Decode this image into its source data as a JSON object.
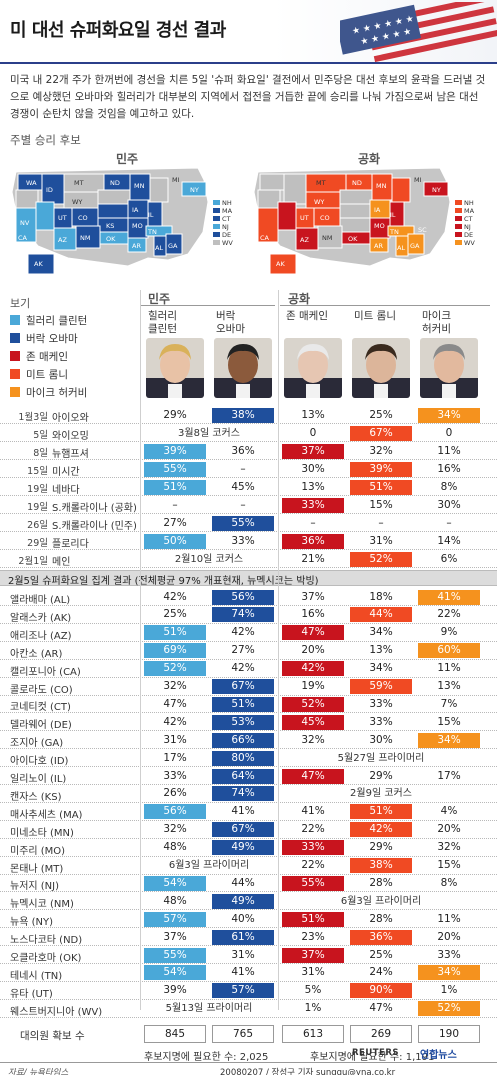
{
  "title": "미 대선 슈퍼화요일 경선 결과",
  "intro": "미국 내 22개 주가 한꺼번에 경선을 치른 5일 '슈퍼 화요일' 결전에서 민주당은 대선 후보의 윤곽을 드러낼 것으로 예상했던 오바마와 힐러리가 대부분의 지역에서 접전을 거듭한 끝에 승리를 나눠 가짐으로써 남은 대선 경쟁이 순탄치 않을 것임을 예고하고 있다.",
  "map_section_label": "주별 승리 후보",
  "maps": {
    "dem": {
      "title": "민주",
      "states": [
        "WA",
        "OR",
        "MT",
        "ND",
        "MN",
        "WI",
        "MI",
        "ID",
        "WY",
        "SD",
        "NY",
        "IA",
        "NV",
        "UT",
        "CO",
        "NE",
        "KS",
        "CA",
        "AZ",
        "NM",
        "OK",
        "MO",
        "IL",
        "TN",
        "AL",
        "GA",
        "AR",
        "TX",
        "AK",
        "HI",
        "MA",
        "NJ",
        "CT",
        "DE",
        "NH",
        "VT",
        "WV",
        "RI",
        "ME",
        "IN",
        "OH",
        "PA",
        "KY",
        "VA",
        "NC",
        "SC",
        "MS",
        "LA",
        "FL",
        "MD"
      ],
      "east_labels": [
        "NH",
        "MA",
        "CT",
        "NJ",
        "DE",
        "WV"
      ]
    },
    "rep": {
      "title": "공화",
      "east_labels": [
        "NH",
        "MA",
        "CT",
        "NJ",
        "DE",
        "WV"
      ]
    }
  },
  "colors": {
    "clinton": "#4aa8d8",
    "obama": "#1f4f9c",
    "mccain": "#c8141e",
    "romney": "#f04a23",
    "huckabee": "#f5921e",
    "uncontested": "#bfbfbf"
  },
  "legend": {
    "head": "보기",
    "items": [
      {
        "label": "힐러리 클린턴",
        "color": "#4aa8d8"
      },
      {
        "label": "버락 오바마",
        "color": "#1f4f9c"
      },
      {
        "label": "존 매케인",
        "color": "#c8141e"
      },
      {
        "label": "미트 롬니",
        "color": "#f04a23"
      },
      {
        "label": "마이크 허커비",
        "color": "#f5921e"
      }
    ]
  },
  "groups": {
    "dem": "민주",
    "rep": "공화"
  },
  "candidates": [
    {
      "name1": "힐러리",
      "name2": "클린턴"
    },
    {
      "name1": "버락",
      "name2": "오바마"
    },
    {
      "name1": "존 매케인",
      "name2": ""
    },
    {
      "name1": "미트 롬니",
      "name2": ""
    },
    {
      "name1": "마이크",
      "name2": "허커비"
    }
  ],
  "chart_data": {
    "type": "table",
    "title": "미 대선 슈퍼화요일 경선 결과",
    "columns": [
      "힐러리 클린턴",
      "버락 오바마",
      "존 매케인",
      "미트 롬니",
      "마이크 허커비"
    ],
    "early_contests": [
      {
        "date": "1월3일",
        "state": "아이오와",
        "values": [
          "29%",
          "38%",
          "13%",
          "25%",
          "34%"
        ],
        "winners": {
          "dem": 1,
          "rep": 4
        }
      },
      {
        "date": "5일",
        "state": "와이오밍",
        "dem_note": "3월8일 코커스",
        "values": [
          "",
          "",
          "0",
          "67%",
          "0"
        ],
        "winners": {
          "rep": 3
        }
      },
      {
        "date": "8일",
        "state": "뉴햄프셔",
        "values": [
          "39%",
          "36%",
          "37%",
          "32%",
          "11%"
        ],
        "winners": {
          "dem": 0,
          "rep": 2
        }
      },
      {
        "date": "15일",
        "state": "미시간",
        "values": [
          "55%",
          "–",
          "30%",
          "39%",
          "16%"
        ],
        "winners": {
          "dem": 0,
          "rep": 3
        }
      },
      {
        "date": "19일",
        "state": "네바다",
        "values": [
          "51%",
          "45%",
          "13%",
          "51%",
          "8%"
        ],
        "winners": {
          "dem": 0,
          "rep": 3
        }
      },
      {
        "date": "19일",
        "state": "S.캐롤라이나 (공화)",
        "values": [
          "–",
          "–",
          "33%",
          "15%",
          "30%"
        ],
        "winners": {
          "rep": 2
        }
      },
      {
        "date": "26일",
        "state": "S.캐롤라이나 (민주)",
        "values": [
          "27%",
          "55%",
          "–",
          "–",
          "–"
        ],
        "winners": {
          "dem": 1
        }
      },
      {
        "date": "29일",
        "state": "플로리다",
        "values": [
          "50%",
          "33%",
          "36%",
          "31%",
          "14%"
        ],
        "winners": {
          "dem": 0,
          "rep": 2
        }
      },
      {
        "date": "2월1일",
        "state": "메인",
        "dem_note": "2월10일 코커스",
        "values": [
          "",
          "",
          "21%",
          "52%",
          "6%"
        ],
        "winners": {
          "rep": 3
        }
      }
    ],
    "super_tuesday_header": "2월5일 슈퍼화요일 집계 결과 (전체평균 97% 개표현재, 뉴멕시코는 박빙)",
    "super_tuesday": [
      {
        "state": "앨라배마 (AL)",
        "values": [
          "42%",
          "56%",
          "37%",
          "18%",
          "41%"
        ],
        "winners": {
          "dem": 1,
          "rep": 4
        }
      },
      {
        "state": "알래스카 (AK)",
        "values": [
          "25%",
          "74%",
          "16%",
          "44%",
          "22%"
        ],
        "winners": {
          "dem": 1,
          "rep": 3
        }
      },
      {
        "state": "애리조나 (AZ)",
        "values": [
          "51%",
          "42%",
          "47%",
          "34%",
          "9%"
        ],
        "winners": {
          "dem": 0,
          "rep": 2
        }
      },
      {
        "state": "아칸소 (AR)",
        "values": [
          "69%",
          "27%",
          "20%",
          "13%",
          "60%"
        ],
        "winners": {
          "dem": 0,
          "rep": 4
        }
      },
      {
        "state": "캘리포니아 (CA)",
        "values": [
          "52%",
          "42%",
          "42%",
          "34%",
          "11%"
        ],
        "winners": {
          "dem": 0,
          "rep": 2
        }
      },
      {
        "state": "콜로라도 (CO)",
        "values": [
          "32%",
          "67%",
          "19%",
          "59%",
          "13%"
        ],
        "winners": {
          "dem": 1,
          "rep": 3
        }
      },
      {
        "state": "코네티컷 (CT)",
        "values": [
          "47%",
          "51%",
          "52%",
          "33%",
          "7%"
        ],
        "winners": {
          "dem": 1,
          "rep": 2
        }
      },
      {
        "state": "델라웨어 (DE)",
        "values": [
          "42%",
          "53%",
          "45%",
          "33%",
          "15%"
        ],
        "winners": {
          "dem": 1,
          "rep": 2
        }
      },
      {
        "state": "조지아 (GA)",
        "values": [
          "31%",
          "66%",
          "32%",
          "30%",
          "34%"
        ],
        "winners": {
          "dem": 1,
          "rep": 4
        }
      },
      {
        "state": "아이다호 (ID)",
        "values": [
          "17%",
          "80%",
          "",
          "",
          ""
        ],
        "rep_note": "5월27일 프라이머리",
        "winners": {
          "dem": 1
        }
      },
      {
        "state": "일리노이 (IL)",
        "values": [
          "33%",
          "64%",
          "47%",
          "29%",
          "17%"
        ],
        "winners": {
          "dem": 1,
          "rep": 2
        }
      },
      {
        "state": "캔자스 (KS)",
        "values": [
          "26%",
          "74%",
          "",
          "",
          ""
        ],
        "rep_note": "2월9일 코커스",
        "winners": {
          "dem": 1
        }
      },
      {
        "state": "매사추세츠 (MA)",
        "values": [
          "56%",
          "41%",
          "41%",
          "51%",
          "4%"
        ],
        "winners": {
          "dem": 0,
          "rep": 3
        }
      },
      {
        "state": "미네소타 (MN)",
        "values": [
          "32%",
          "67%",
          "22%",
          "42%",
          "20%"
        ],
        "winners": {
          "dem": 1,
          "rep": 3
        }
      },
      {
        "state": "미주리 (MO)",
        "values": [
          "48%",
          "49%",
          "33%",
          "29%",
          "32%"
        ],
        "winners": {
          "dem": 1,
          "rep": 2
        }
      },
      {
        "state": "몬태나 (MT)",
        "values": [
          "",
          "",
          "22%",
          "38%",
          "15%"
        ],
        "dem_note": "6월3일 프라이머리",
        "winners": {
          "rep": 3
        }
      },
      {
        "state": "뉴저지 (NJ)",
        "values": [
          "54%",
          "44%",
          "55%",
          "28%",
          "8%"
        ],
        "winners": {
          "dem": 0,
          "rep": 2
        }
      },
      {
        "state": "뉴멕시코 (NM)",
        "values": [
          "48%",
          "49%",
          "",
          "",
          ""
        ],
        "rep_note": "6월3일 프라이머리",
        "winners": {
          "dem": 1
        }
      },
      {
        "state": "뉴욕 (NY)",
        "values": [
          "57%",
          "40%",
          "51%",
          "28%",
          "11%"
        ],
        "winners": {
          "dem": 0,
          "rep": 2
        }
      },
      {
        "state": "노스다코타 (ND)",
        "values": [
          "37%",
          "61%",
          "23%",
          "36%",
          "20%"
        ],
        "winners": {
          "dem": 1,
          "rep": 3
        }
      },
      {
        "state": "오클라호마 (OK)",
        "values": [
          "55%",
          "31%",
          "37%",
          "25%",
          "33%"
        ],
        "winners": {
          "dem": 0,
          "rep": 2
        }
      },
      {
        "state": "테네시 (TN)",
        "values": [
          "54%",
          "41%",
          "31%",
          "24%",
          "34%"
        ],
        "winners": {
          "dem": 0,
          "rep": 4
        }
      },
      {
        "state": "유타 (UT)",
        "values": [
          "39%",
          "57%",
          "5%",
          "90%",
          "1%"
        ],
        "winners": {
          "dem": 1,
          "rep": 3
        }
      },
      {
        "state": "웨스트버지니아 (WV)",
        "values": [
          "",
          "",
          "1%",
          "47%",
          "52%"
        ],
        "dem_note": "5월13일 프라이머리",
        "winners": {
          "rep": 4
        }
      }
    ],
    "delegates": {
      "label": "대의원 확보 수",
      "values": [
        "845",
        "765",
        "613",
        "269",
        "190"
      ]
    },
    "dem_needed": "후보지명에 필요한 수: 2,025",
    "rep_needed": "후보지명에 필요한 수: 1,191"
  },
  "footer": {
    "source": "자료/ 뉴욕타임스",
    "reuters": "REUTERS",
    "yonhap": "연합뉴스",
    "credit": "20080207 / 장성구 기자 sunggu@yna.co.kr"
  }
}
